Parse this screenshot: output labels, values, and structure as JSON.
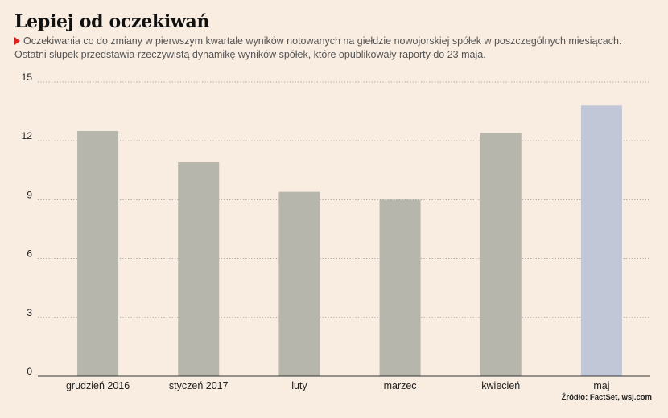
{
  "title": "Lepiej od oczekiwań",
  "subtitle_line1": "Oczekiwania co do zmiany w pierwszym kwartale wyników notowanych na giełdzie nowojorskiej spółek w poszczególnych miesiącach.",
  "subtitle_line2": "Ostatni słupek przedstawia rzeczywistą dynamikę wyników spółek, które opublikowały raporty do 23 maja.",
  "source": "Źródło: FactSet, wsj.com",
  "colors": {
    "background": "#f9ece0",
    "bar": "#b6b6ac",
    "bar_highlight": "#c2c7d8",
    "marker": "#d8231f"
  },
  "chart_data": {
    "type": "bar",
    "title": "Lepiej od oczekiwań",
    "categories": [
      "grudzień 2016",
      "styczeń 2017",
      "luty",
      "marzec",
      "kwiecień",
      "maj"
    ],
    "values": [
      12.5,
      10.9,
      9.4,
      9.0,
      12.4,
      13.8
    ],
    "highlight_index": 5,
    "ylim": [
      0,
      15
    ],
    "yticks": [
      0,
      3,
      6,
      9,
      12,
      15
    ],
    "xlabel": "",
    "ylabel": "",
    "grid": true
  }
}
